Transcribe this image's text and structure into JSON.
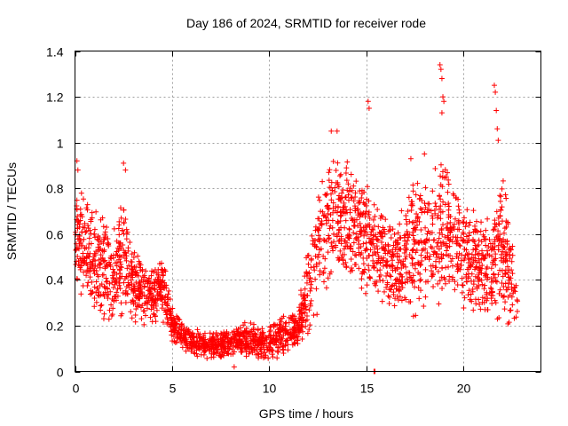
{
  "chart_data": {
    "type": "scatter",
    "title": "Day 186 of 2024, SRMTID for receiver rode",
    "xlabel": "GPS time / hours",
    "ylabel": "SRMTID / TECUs",
    "xlim": [
      0,
      24
    ],
    "ylim": [
      0,
      1.4
    ],
    "xticks": [
      0,
      5,
      10,
      15,
      20
    ],
    "xtick_labels": [
      "0",
      "5",
      "10",
      "15",
      "20"
    ],
    "yticks": [
      0,
      0.2,
      0.4,
      0.6,
      0.8,
      1,
      1.2,
      1.4
    ],
    "ytick_labels": [
      "0",
      "0.2",
      "0.4",
      "0.6",
      "0.8",
      "1",
      "1.2",
      "1.4"
    ],
    "grid": true,
    "marker": "+",
    "color": "#ff0000",
    "series": [
      {
        "name": "SRMTID",
        "envelope": {
          "description": "approximate local range of the dense scatter, read from the figure",
          "x": [
            0.0,
            0.5,
            1.0,
            1.5,
            2.0,
            2.5,
            3.0,
            3.5,
            4.0,
            4.5,
            5.0,
            5.5,
            6.0,
            6.5,
            7.0,
            7.5,
            8.0,
            8.5,
            9.0,
            9.5,
            10.0,
            10.5,
            11.0,
            11.5,
            12.0,
            12.5,
            13.0,
            13.5,
            14.0,
            14.5,
            15.0,
            15.5,
            16.0,
            16.5,
            17.0,
            17.5,
            18.0,
            18.5,
            19.0,
            19.5,
            20.0,
            20.5,
            21.0,
            21.5,
            22.0,
            22.5,
            22.8
          ],
          "lo": [
            0.3,
            0.3,
            0.25,
            0.22,
            0.18,
            0.18,
            0.2,
            0.2,
            0.2,
            0.2,
            0.12,
            0.08,
            0.06,
            0.06,
            0.05,
            0.05,
            0.06,
            0.07,
            0.05,
            0.05,
            0.04,
            0.06,
            0.08,
            0.1,
            0.15,
            0.25,
            0.35,
            0.4,
            0.4,
            0.4,
            0.32,
            0.3,
            0.28,
            0.25,
            0.22,
            0.2,
            0.25,
            0.25,
            0.3,
            0.3,
            0.25,
            0.22,
            0.2,
            0.25,
            0.2,
            0.15,
            0.15
          ],
          "hi": [
            0.9,
            0.75,
            0.72,
            0.7,
            0.65,
            0.85,
            0.55,
            0.5,
            0.45,
            0.55,
            0.3,
            0.22,
            0.2,
            0.18,
            0.18,
            0.18,
            0.2,
            0.22,
            0.22,
            0.2,
            0.2,
            0.24,
            0.25,
            0.3,
            0.55,
            0.8,
            0.95,
            1.05,
            0.95,
            0.9,
            0.85,
            0.75,
            0.7,
            0.65,
            0.8,
            0.92,
            0.9,
            0.88,
            1.0,
            0.85,
            0.85,
            0.75,
            0.7,
            0.68,
            0.9,
            0.65,
            0.4
          ]
        },
        "highlights": [
          {
            "x": 0.1,
            "y": 0.92
          },
          {
            "x": 0.15,
            "y": 0.88
          },
          {
            "x": 2.5,
            "y": 0.91
          },
          {
            "x": 2.6,
            "y": 0.88
          },
          {
            "x": 13.2,
            "y": 1.05
          },
          {
            "x": 13.5,
            "y": 1.05
          },
          {
            "x": 15.1,
            "y": 1.18
          },
          {
            "x": 15.15,
            "y": 1.15
          },
          {
            "x": 17.3,
            "y": 0.93
          },
          {
            "x": 18.0,
            "y": 0.95
          },
          {
            "x": 18.8,
            "y": 1.34
          },
          {
            "x": 18.85,
            "y": 1.32
          },
          {
            "x": 18.9,
            "y": 1.28
          },
          {
            "x": 18.95,
            "y": 1.2
          },
          {
            "x": 19.0,
            "y": 1.18
          },
          {
            "x": 18.9,
            "y": 1.13
          },
          {
            "x": 21.6,
            "y": 1.25
          },
          {
            "x": 21.65,
            "y": 1.22
          },
          {
            "x": 21.7,
            "y": 1.14
          },
          {
            "x": 21.75,
            "y": 1.06
          },
          {
            "x": 21.8,
            "y": 1.01
          },
          {
            "x": 15.4,
            "y": 0.0
          },
          {
            "x": 15.45,
            "y": 0.0
          },
          {
            "x": 8.2,
            "y": 0.02
          }
        ]
      }
    ]
  }
}
